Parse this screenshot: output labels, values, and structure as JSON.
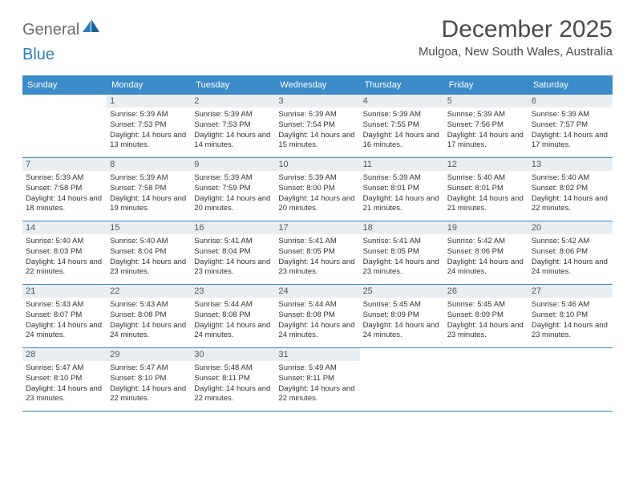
{
  "logo": {
    "text1": "General",
    "text2": "Blue"
  },
  "title": "December 2025",
  "location": "Mulgoa, New South Wales, Australia",
  "colors": {
    "header_bg": "#3b8bc9",
    "header_text": "#ffffff",
    "daynum_bg": "#e9eef2",
    "border": "#3b8bc9",
    "logo_gray": "#6b6b6b",
    "logo_blue": "#2f7ec2"
  },
  "day_headers": [
    "Sunday",
    "Monday",
    "Tuesday",
    "Wednesday",
    "Thursday",
    "Friday",
    "Saturday"
  ],
  "weeks": [
    [
      {
        "n": "",
        "sr": "",
        "ss": "",
        "dl": ""
      },
      {
        "n": "1",
        "sr": "Sunrise: 5:39 AM",
        "ss": "Sunset: 7:53 PM",
        "dl": "Daylight: 14 hours and 13 minutes."
      },
      {
        "n": "2",
        "sr": "Sunrise: 5:39 AM",
        "ss": "Sunset: 7:53 PM",
        "dl": "Daylight: 14 hours and 14 minutes."
      },
      {
        "n": "3",
        "sr": "Sunrise: 5:39 AM",
        "ss": "Sunset: 7:54 PM",
        "dl": "Daylight: 14 hours and 15 minutes."
      },
      {
        "n": "4",
        "sr": "Sunrise: 5:39 AM",
        "ss": "Sunset: 7:55 PM",
        "dl": "Daylight: 14 hours and 16 minutes."
      },
      {
        "n": "5",
        "sr": "Sunrise: 5:39 AM",
        "ss": "Sunset: 7:56 PM",
        "dl": "Daylight: 14 hours and 17 minutes."
      },
      {
        "n": "6",
        "sr": "Sunrise: 5:39 AM",
        "ss": "Sunset: 7:57 PM",
        "dl": "Daylight: 14 hours and 17 minutes."
      }
    ],
    [
      {
        "n": "7",
        "sr": "Sunrise: 5:39 AM",
        "ss": "Sunset: 7:58 PM",
        "dl": "Daylight: 14 hours and 18 minutes."
      },
      {
        "n": "8",
        "sr": "Sunrise: 5:39 AM",
        "ss": "Sunset: 7:58 PM",
        "dl": "Daylight: 14 hours and 19 minutes."
      },
      {
        "n": "9",
        "sr": "Sunrise: 5:39 AM",
        "ss": "Sunset: 7:59 PM",
        "dl": "Daylight: 14 hours and 20 minutes."
      },
      {
        "n": "10",
        "sr": "Sunrise: 5:39 AM",
        "ss": "Sunset: 8:00 PM",
        "dl": "Daylight: 14 hours and 20 minutes."
      },
      {
        "n": "11",
        "sr": "Sunrise: 5:39 AM",
        "ss": "Sunset: 8:01 PM",
        "dl": "Daylight: 14 hours and 21 minutes."
      },
      {
        "n": "12",
        "sr": "Sunrise: 5:40 AM",
        "ss": "Sunset: 8:01 PM",
        "dl": "Daylight: 14 hours and 21 minutes."
      },
      {
        "n": "13",
        "sr": "Sunrise: 5:40 AM",
        "ss": "Sunset: 8:02 PM",
        "dl": "Daylight: 14 hours and 22 minutes."
      }
    ],
    [
      {
        "n": "14",
        "sr": "Sunrise: 5:40 AM",
        "ss": "Sunset: 8:03 PM",
        "dl": "Daylight: 14 hours and 22 minutes."
      },
      {
        "n": "15",
        "sr": "Sunrise: 5:40 AM",
        "ss": "Sunset: 8:04 PM",
        "dl": "Daylight: 14 hours and 23 minutes."
      },
      {
        "n": "16",
        "sr": "Sunrise: 5:41 AM",
        "ss": "Sunset: 8:04 PM",
        "dl": "Daylight: 14 hours and 23 minutes."
      },
      {
        "n": "17",
        "sr": "Sunrise: 5:41 AM",
        "ss": "Sunset: 8:05 PM",
        "dl": "Daylight: 14 hours and 23 minutes."
      },
      {
        "n": "18",
        "sr": "Sunrise: 5:41 AM",
        "ss": "Sunset: 8:05 PM",
        "dl": "Daylight: 14 hours and 23 minutes."
      },
      {
        "n": "19",
        "sr": "Sunrise: 5:42 AM",
        "ss": "Sunset: 8:06 PM",
        "dl": "Daylight: 14 hours and 24 minutes."
      },
      {
        "n": "20",
        "sr": "Sunrise: 5:42 AM",
        "ss": "Sunset: 8:06 PM",
        "dl": "Daylight: 14 hours and 24 minutes."
      }
    ],
    [
      {
        "n": "21",
        "sr": "Sunrise: 5:43 AM",
        "ss": "Sunset: 8:07 PM",
        "dl": "Daylight: 14 hours and 24 minutes."
      },
      {
        "n": "22",
        "sr": "Sunrise: 5:43 AM",
        "ss": "Sunset: 8:08 PM",
        "dl": "Daylight: 14 hours and 24 minutes."
      },
      {
        "n": "23",
        "sr": "Sunrise: 5:44 AM",
        "ss": "Sunset: 8:08 PM",
        "dl": "Daylight: 14 hours and 24 minutes."
      },
      {
        "n": "24",
        "sr": "Sunrise: 5:44 AM",
        "ss": "Sunset: 8:08 PM",
        "dl": "Daylight: 14 hours and 24 minutes."
      },
      {
        "n": "25",
        "sr": "Sunrise: 5:45 AM",
        "ss": "Sunset: 8:09 PM",
        "dl": "Daylight: 14 hours and 24 minutes."
      },
      {
        "n": "26",
        "sr": "Sunrise: 5:45 AM",
        "ss": "Sunset: 8:09 PM",
        "dl": "Daylight: 14 hours and 23 minutes."
      },
      {
        "n": "27",
        "sr": "Sunrise: 5:46 AM",
        "ss": "Sunset: 8:10 PM",
        "dl": "Daylight: 14 hours and 23 minutes."
      }
    ],
    [
      {
        "n": "28",
        "sr": "Sunrise: 5:47 AM",
        "ss": "Sunset: 8:10 PM",
        "dl": "Daylight: 14 hours and 23 minutes."
      },
      {
        "n": "29",
        "sr": "Sunrise: 5:47 AM",
        "ss": "Sunset: 8:10 PM",
        "dl": "Daylight: 14 hours and 22 minutes."
      },
      {
        "n": "30",
        "sr": "Sunrise: 5:48 AM",
        "ss": "Sunset: 8:11 PM",
        "dl": "Daylight: 14 hours and 22 minutes."
      },
      {
        "n": "31",
        "sr": "Sunrise: 5:49 AM",
        "ss": "Sunset: 8:11 PM",
        "dl": "Daylight: 14 hours and 22 minutes."
      },
      {
        "n": "",
        "sr": "",
        "ss": "",
        "dl": ""
      },
      {
        "n": "",
        "sr": "",
        "ss": "",
        "dl": ""
      },
      {
        "n": "",
        "sr": "",
        "ss": "",
        "dl": ""
      }
    ]
  ]
}
